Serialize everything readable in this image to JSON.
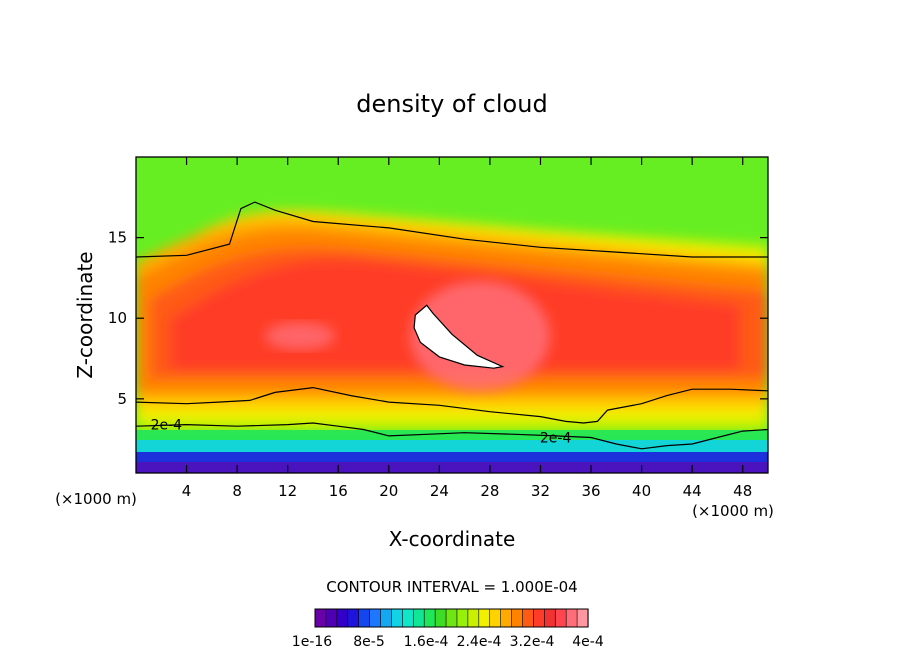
{
  "chart_data": {
    "type": "heatmap",
    "title": "density of cloud",
    "xlabel": "X-coordinate",
    "ylabel": "Z-coordinate",
    "x_unit_left": "(×1000 m)",
    "x_unit_right": "(×1000 m)",
    "xlim": [
      0,
      50
    ],
    "ylim": [
      0.4,
      20
    ],
    "x_ticks": [
      4,
      8,
      12,
      16,
      20,
      24,
      28,
      32,
      36,
      40,
      44,
      48
    ],
    "y_ticks": [
      5,
      10,
      15
    ],
    "contour_interval_text": "CONTOUR INTERVAL = 1.000E-04",
    "contour_labels": [
      {
        "text": "2e-4",
        "x": 2.4,
        "z": 3.4
      },
      {
        "text": "2e-4",
        "x": 33.2,
        "z": 2.6
      }
    ],
    "contour_line_2e4": {
      "upper": [
        [
          0,
          13.8
        ],
        [
          4,
          13.9
        ],
        [
          7.4,
          14.6
        ],
        [
          8.3,
          16.8
        ],
        [
          9.4,
          17.2
        ],
        [
          11,
          16.7
        ],
        [
          14,
          16.0
        ],
        [
          20,
          15.6
        ],
        [
          26,
          14.9
        ],
        [
          32,
          14.4
        ],
        [
          38,
          14.1
        ],
        [
          44,
          13.8
        ],
        [
          50,
          13.8
        ]
      ],
      "lower": [
        [
          0,
          4.8
        ],
        [
          4,
          4.7
        ],
        [
          6.5,
          4.8
        ],
        [
          9,
          4.9
        ],
        [
          11,
          5.4
        ],
        [
          14,
          5.7
        ],
        [
          17,
          5.2
        ],
        [
          20,
          4.8
        ],
        [
          24,
          4.6
        ],
        [
          28,
          4.2
        ],
        [
          32,
          3.9
        ],
        [
          34,
          3.6
        ],
        [
          35.4,
          3.5
        ],
        [
          36.5,
          3.6
        ],
        [
          37.3,
          4.3
        ],
        [
          40,
          4.7
        ],
        [
          42,
          5.2
        ],
        [
          44,
          5.6
        ],
        [
          47,
          5.6
        ],
        [
          50,
          5.5
        ]
      ],
      "bottom": [
        [
          0,
          3.3
        ],
        [
          4,
          3.4
        ],
        [
          8,
          3.3
        ],
        [
          12,
          3.4
        ],
        [
          14,
          3.5
        ],
        [
          16,
          3.3
        ],
        [
          18,
          3.1
        ],
        [
          20,
          2.7
        ],
        [
          23,
          2.8
        ],
        [
          26,
          2.9
        ],
        [
          30,
          2.8
        ],
        [
          33.2,
          2.7
        ],
        [
          36,
          2.6
        ],
        [
          38,
          2.2
        ],
        [
          40,
          1.9
        ],
        [
          42,
          2.1
        ],
        [
          44,
          2.2
        ],
        [
          46,
          2.6
        ],
        [
          48,
          3.0
        ],
        [
          50,
          3.1
        ]
      ]
    },
    "max_core_region": [
      [
        22.1,
        10.2
      ],
      [
        23,
        10.8
      ],
      [
        23.5,
        10.3
      ],
      [
        25,
        9.0
      ],
      [
        27,
        7.7
      ],
      [
        29,
        7.0
      ],
      [
        28.3,
        6.9
      ],
      [
        26,
        7.1
      ],
      [
        24,
        7.6
      ],
      [
        22.5,
        8.5
      ],
      [
        22.0,
        9.4
      ]
    ],
    "colorbar": {
      "colors": [
        "#6a00a8",
        "#5000b4",
        "#3200c8",
        "#1e14dc",
        "#1446f0",
        "#1e78ff",
        "#14a8f0",
        "#12d2e6",
        "#10e6c8",
        "#10e696",
        "#20e65a",
        "#3cdc28",
        "#6ee614",
        "#96f00a",
        "#c8f000",
        "#f0f000",
        "#ffd200",
        "#ffaa00",
        "#ff8200",
        "#ff5a14",
        "#ff3c28",
        "#f03232",
        "#ff4650",
        "#ff6e78",
        "#ff96a0"
      ],
      "tick_labels": [
        "1e-16",
        "8e-5",
        "1.6e-4",
        "2.4e-4",
        "3.2e-4",
        "4e-4"
      ]
    },
    "legend": "bottom-center",
    "grid": false
  }
}
